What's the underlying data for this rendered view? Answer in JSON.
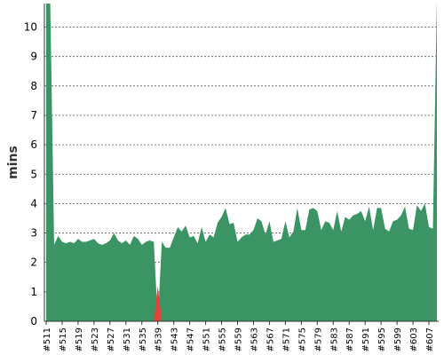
{
  "chart_data": {
    "type": "area",
    "title": "",
    "xlabel": "",
    "ylabel": "mins",
    "ylim": [
      0,
      10.8
    ],
    "yticks": [
      0,
      1,
      2,
      3,
      4,
      5,
      6,
      7,
      8,
      9,
      10
    ],
    "grid": true,
    "x_tick_labels": [
      "#511",
      "#515",
      "#519",
      "#523",
      "#527",
      "#531",
      "#535",
      "#539",
      "#543",
      "#547",
      "#551",
      "#555",
      "#559",
      "#563",
      "#567",
      "#571",
      "#575",
      "#579",
      "#583",
      "#587",
      "#591",
      "#595",
      "#599",
      "#603",
      "#607"
    ],
    "x_start": 511,
    "x_end": 609,
    "series": [
      {
        "color": "#3a9464",
        "values": [
          [
            511,
            11.0
          ],
          [
            512,
            11.0
          ],
          [
            513,
            2.6
          ],
          [
            514,
            2.9
          ],
          [
            515,
            2.7
          ],
          [
            516,
            2.65
          ],
          [
            517,
            2.7
          ],
          [
            518,
            2.65
          ],
          [
            519,
            2.8
          ],
          [
            520,
            2.7
          ],
          [
            521,
            2.7
          ],
          [
            522,
            2.75
          ],
          [
            523,
            2.8
          ],
          [
            524,
            2.65
          ],
          [
            525,
            2.6
          ],
          [
            526,
            2.65
          ],
          [
            527,
            2.75
          ],
          [
            528,
            3.0
          ],
          [
            529,
            2.75
          ],
          [
            530,
            2.65
          ],
          [
            531,
            2.75
          ],
          [
            532,
            2.6
          ],
          [
            533,
            2.9
          ],
          [
            534,
            2.8
          ],
          [
            535,
            2.6
          ],
          [
            536,
            2.7
          ],
          [
            537,
            2.75
          ],
          [
            538,
            2.7
          ],
          [
            539,
            0.0
          ],
          [
            540,
            2.7
          ],
          [
            541,
            2.5
          ],
          [
            542,
            2.5
          ],
          [
            543,
            2.85
          ],
          [
            544,
            3.2
          ],
          [
            545,
            3.05
          ],
          [
            546,
            3.25
          ],
          [
            547,
            2.85
          ],
          [
            548,
            2.9
          ],
          [
            549,
            2.65
          ],
          [
            550,
            3.2
          ],
          [
            551,
            2.7
          ],
          [
            552,
            2.95
          ],
          [
            553,
            2.85
          ],
          [
            554,
            3.35
          ],
          [
            555,
            3.55
          ],
          [
            556,
            3.85
          ],
          [
            557,
            3.3
          ],
          [
            558,
            3.35
          ],
          [
            559,
            2.7
          ],
          [
            560,
            2.85
          ],
          [
            561,
            2.95
          ],
          [
            562,
            2.95
          ],
          [
            563,
            3.1
          ],
          [
            564,
            3.5
          ],
          [
            565,
            3.4
          ],
          [
            566,
            2.95
          ],
          [
            567,
            3.4
          ],
          [
            568,
            2.7
          ],
          [
            569,
            2.75
          ],
          [
            570,
            2.8
          ],
          [
            571,
            3.4
          ],
          [
            572,
            2.85
          ],
          [
            573,
            3.05
          ],
          [
            574,
            3.85
          ],
          [
            575,
            3.1
          ],
          [
            576,
            3.1
          ],
          [
            577,
            3.8
          ],
          [
            578,
            3.85
          ],
          [
            579,
            3.75
          ],
          [
            580,
            3.1
          ],
          [
            581,
            3.4
          ],
          [
            582,
            3.35
          ],
          [
            583,
            3.1
          ],
          [
            584,
            3.75
          ],
          [
            585,
            3.05
          ],
          [
            586,
            3.55
          ],
          [
            587,
            3.45
          ],
          [
            588,
            3.6
          ],
          [
            589,
            3.65
          ],
          [
            590,
            3.75
          ],
          [
            591,
            3.4
          ],
          [
            592,
            3.9
          ],
          [
            593,
            3.1
          ],
          [
            594,
            3.85
          ],
          [
            595,
            3.85
          ],
          [
            596,
            3.15
          ],
          [
            597,
            3.05
          ],
          [
            598,
            3.4
          ],
          [
            599,
            3.45
          ],
          [
            600,
            3.6
          ],
          [
            601,
            3.9
          ],
          [
            602,
            3.15
          ],
          [
            603,
            3.1
          ],
          [
            604,
            3.95
          ],
          [
            605,
            3.75
          ],
          [
            606,
            4.0
          ],
          [
            607,
            3.2
          ],
          [
            608,
            3.15
          ],
          [
            609,
            11.0
          ]
        ]
      },
      {
        "color": "#e0443a",
        "values": [
          [
            538,
            0.0
          ],
          [
            539,
            1.2
          ],
          [
            540,
            0.0
          ]
        ]
      }
    ]
  }
}
